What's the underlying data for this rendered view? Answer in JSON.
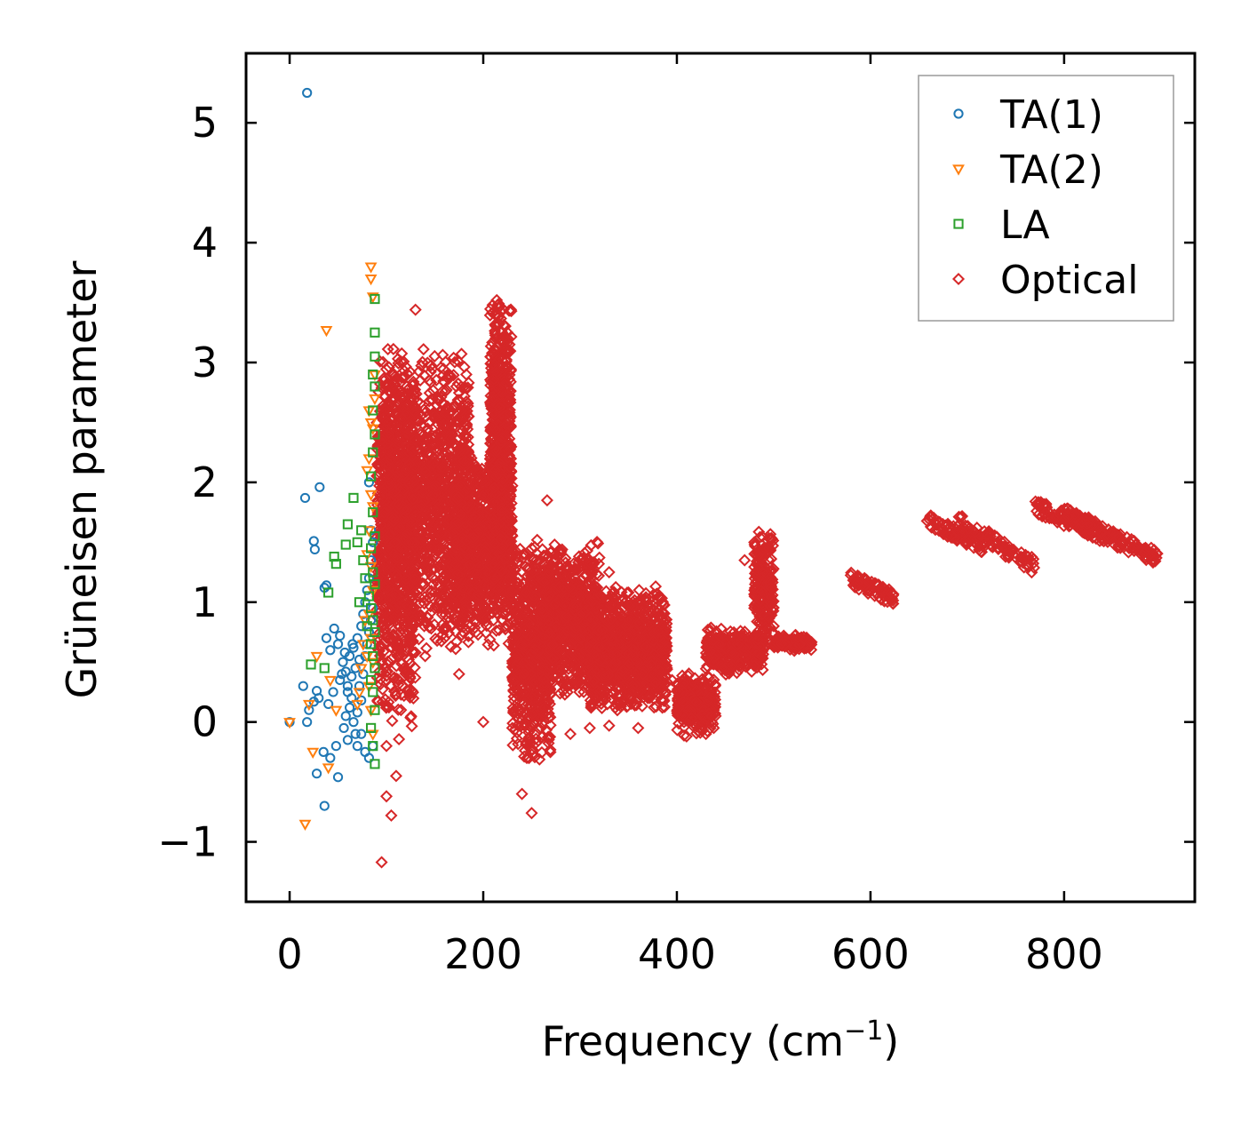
{
  "chart_data": {
    "type": "scatter",
    "title": "",
    "xlabel": "Frequency (cm",
    "xlabel_sup": "−1",
    "xlabel_tail": ")",
    "ylabel": "Grüneisen parameter",
    "xlim": [
      -45,
      935
    ],
    "ylim": [
      -1.5,
      5.58
    ],
    "xticks": [
      0,
      200,
      400,
      600,
      800
    ],
    "yticks": [
      -1,
      0,
      1,
      2,
      3,
      4,
      5
    ],
    "xtick_labels": [
      "0",
      "200",
      "400",
      "600",
      "800"
    ],
    "ytick_labels": [
      "−1",
      "0",
      "1",
      "2",
      "3",
      "4",
      "5"
    ],
    "legend_position": "top-right",
    "series": [
      {
        "name": "TA(1)",
        "marker": "circle",
        "color": "#1f77b4",
        "points": [
          [
            18,
            5.25
          ],
          [
            16,
            1.87
          ],
          [
            31,
            1.96
          ],
          [
            25,
            1.51
          ],
          [
            26,
            1.44
          ],
          [
            38,
            1.14
          ],
          [
            36,
            1.12
          ],
          [
            14,
            0.3
          ],
          [
            20,
            0.1
          ],
          [
            18,
            0.0
          ],
          [
            28,
            0.26
          ],
          [
            30,
            0.2
          ],
          [
            25,
            0.17
          ],
          [
            28,
            -0.43
          ],
          [
            35,
            -0.25
          ],
          [
            36,
            -0.7
          ],
          [
            42,
            -0.3
          ],
          [
            48,
            -0.2
          ],
          [
            50,
            -0.46
          ],
          [
            38,
            0.7
          ],
          [
            42,
            0.6
          ],
          [
            46,
            0.78
          ],
          [
            50,
            0.65
          ],
          [
            52,
            0.72
          ],
          [
            55,
            0.5
          ],
          [
            58,
            0.42
          ],
          [
            60,
            0.3
          ],
          [
            62,
            0.55
          ],
          [
            64,
            0.38
          ],
          [
            66,
            0.62
          ],
          [
            68,
            0.45
          ],
          [
            70,
            0.7
          ],
          [
            72,
            0.52
          ],
          [
            74,
            0.8
          ],
          [
            76,
            0.9
          ],
          [
            78,
            1.0
          ],
          [
            80,
            1.1
          ],
          [
            82,
            1.2
          ],
          [
            84,
            1.35
          ],
          [
            86,
            1.5
          ],
          [
            84,
            1.6
          ],
          [
            82,
            2.0
          ],
          [
            40,
            0.15
          ],
          [
            45,
            0.25
          ],
          [
            52,
            0.35
          ],
          [
            56,
            -0.05
          ],
          [
            58,
            0.05
          ],
          [
            60,
            -0.15
          ],
          [
            62,
            0.12
          ],
          [
            64,
            0.2
          ],
          [
            66,
            0.0
          ],
          [
            68,
            -0.1
          ],
          [
            70,
            0.08
          ],
          [
            72,
            0.3
          ],
          [
            74,
            0.18
          ],
          [
            76,
            0.4
          ],
          [
            78,
            0.55
          ],
          [
            80,
            0.65
          ],
          [
            82,
            0.75
          ],
          [
            84,
            0.85
          ],
          [
            86,
            0.95
          ],
          [
            70,
            -0.2
          ],
          [
            74,
            -0.1
          ],
          [
            78,
            -0.25
          ],
          [
            82,
            -0.3
          ],
          [
            86,
            -0.2
          ],
          [
            60,
            0.25
          ],
          [
            65,
            0.65
          ],
          [
            54,
            0.4
          ],
          [
            57,
            0.58
          ],
          [
            0,
            0.0
          ]
        ]
      },
      {
        "name": "TA(2)",
        "marker": "triangle-down",
        "color": "#ff7f0e",
        "points": [
          [
            0,
            0.0
          ],
          [
            16,
            -0.85
          ],
          [
            20,
            0.15
          ],
          [
            24,
            -0.25
          ],
          [
            28,
            0.55
          ],
          [
            38,
            3.27
          ],
          [
            40,
            -0.38
          ],
          [
            42,
            0.35
          ],
          [
            48,
            0.1
          ],
          [
            84,
            3.8
          ],
          [
            84,
            3.7
          ],
          [
            86,
            3.55
          ],
          [
            82,
            2.6
          ],
          [
            84,
            2.5
          ],
          [
            86,
            2.45
          ],
          [
            82,
            2.2
          ],
          [
            80,
            2.1
          ],
          [
            84,
            1.9
          ],
          [
            86,
            1.8
          ],
          [
            82,
            1.6
          ],
          [
            80,
            1.4
          ],
          [
            84,
            1.3
          ],
          [
            86,
            1.1
          ],
          [
            82,
            0.9
          ],
          [
            84,
            0.7
          ],
          [
            86,
            0.5
          ],
          [
            82,
            0.3
          ],
          [
            84,
            0.1
          ],
          [
            86,
            -0.1
          ],
          [
            88,
            2.9
          ],
          [
            88,
            2.7
          ],
          [
            78,
            0.85
          ],
          [
            80,
            0.55
          ],
          [
            76,
            0.65
          ],
          [
            74,
            0.45
          ],
          [
            72,
            0.25
          ],
          [
            70,
            0.15
          ]
        ]
      },
      {
        "name": "LA",
        "marker": "square",
        "color": "#2ca02c",
        "points": [
          [
            88,
            3.53
          ],
          [
            88,
            3.25
          ],
          [
            88,
            3.05
          ],
          [
            86,
            2.9
          ],
          [
            88,
            2.8
          ],
          [
            86,
            2.6
          ],
          [
            88,
            2.4
          ],
          [
            86,
            2.25
          ],
          [
            84,
            2.05
          ],
          [
            66,
            1.87
          ],
          [
            60,
            1.65
          ],
          [
            58,
            1.48
          ],
          [
            46,
            1.38
          ],
          [
            48,
            1.32
          ],
          [
            40,
            1.08
          ],
          [
            86,
            1.75
          ],
          [
            88,
            1.55
          ],
          [
            84,
            1.45
          ],
          [
            86,
            1.25
          ],
          [
            88,
            1.15
          ],
          [
            82,
            1.05
          ],
          [
            84,
            0.95
          ],
          [
            86,
            0.85
          ],
          [
            88,
            0.75
          ],
          [
            84,
            0.65
          ],
          [
            86,
            0.55
          ],
          [
            88,
            0.45
          ],
          [
            84,
            0.35
          ],
          [
            86,
            0.25
          ],
          [
            88,
            0.1
          ],
          [
            84,
            -0.05
          ],
          [
            86,
            -0.2
          ],
          [
            88,
            -0.35
          ],
          [
            22,
            0.48
          ],
          [
            36,
            0.45
          ],
          [
            70,
            1.5
          ],
          [
            74,
            1.6
          ],
          [
            76,
            1.35
          ],
          [
            78,
            1.2
          ],
          [
            72,
            1.0
          ],
          [
            80,
            0.8
          ]
        ]
      },
      {
        "name": "Optical",
        "marker": "diamond",
        "color": "#d62728",
        "dense_regions": [
          {
            "cx": 140,
            "cy": 1.85,
            "w": 90,
            "h": 2.2,
            "density": 1400
          },
          {
            "cx": 110,
            "cy": 1.5,
            "w": 40,
            "h": 2.8,
            "density": 700
          },
          {
            "cx": 200,
            "cy": 1.45,
            "w": 60,
            "h": 1.4,
            "density": 900
          },
          {
            "cx": 218,
            "cy": 2.3,
            "w": 22,
            "h": 2.3,
            "density": 600
          },
          {
            "cx": 250,
            "cy": 0.6,
            "w": 40,
            "h": 1.6,
            "density": 700
          },
          {
            "cx": 290,
            "cy": 0.85,
            "w": 60,
            "h": 1.1,
            "density": 900
          },
          {
            "cx": 350,
            "cy": 0.6,
            "w": 80,
            "h": 0.9,
            "density": 1100
          },
          {
            "cx": 420,
            "cy": 0.15,
            "w": 40,
            "h": 0.45,
            "density": 300
          },
          {
            "cx": 460,
            "cy": 0.6,
            "w": 60,
            "h": 0.35,
            "density": 300
          },
          {
            "cx": 490,
            "cy": 1.1,
            "w": 20,
            "h": 0.9,
            "density": 200
          },
          {
            "cx": 520,
            "cy": 0.66,
            "w": 40,
            "h": 0.12,
            "density": 120
          }
        ],
        "streaks": [
          {
            "x": [
              580,
              625
            ],
            "y": [
              1.2,
              1.03
            ],
            "n": 70
          },
          {
            "x": [
              660,
              720
            ],
            "y": [
              1.68,
              1.45
            ],
            "n": 90
          },
          {
            "x": [
              690,
              770
            ],
            "y": [
              1.68,
              1.3
            ],
            "n": 90
          },
          {
            "x": [
              770,
              895
            ],
            "y": [
              1.8,
              1.38
            ],
            "n": 170
          },
          {
            "x": [
              800,
              860
            ],
            "y": [
              1.75,
              1.5
            ],
            "n": 80
          }
        ],
        "points": [
          [
            95,
            -1.17
          ],
          [
            105,
            -0.78
          ],
          [
            100,
            -0.62
          ],
          [
            110,
            -0.45
          ],
          [
            115,
            0.1
          ],
          [
            130,
            3.44
          ],
          [
            215,
            3.48
          ],
          [
            266,
            1.85
          ],
          [
            250,
            -0.76
          ],
          [
            240,
            -0.6
          ],
          [
            245,
            -0.3
          ],
          [
            200,
            0.0
          ],
          [
            310,
            1.33
          ],
          [
            330,
            1.25
          ],
          [
            350,
            1.08
          ],
          [
            380,
            1.07
          ],
          [
            480,
            1.5
          ],
          [
            495,
            1.45
          ],
          [
            470,
            1.35
          ],
          [
            160,
            0.7
          ],
          [
            175,
            0.4
          ],
          [
            130,
            0.58
          ],
          [
            140,
            0.55
          ],
          [
            230,
            -0.05
          ],
          [
            290,
            -0.1
          ],
          [
            310,
            -0.05
          ],
          [
            330,
            -0.03
          ],
          [
            360,
            -0.05
          ],
          [
            100,
            -0.2
          ],
          [
            105,
            0.3
          ],
          [
            250,
            1.45
          ],
          [
            280,
            1.4
          ],
          [
            300,
            1.1
          ],
          [
            150,
            2.55
          ],
          [
            185,
            2.55
          ],
          [
            225,
            3.25
          ],
          [
            150,
            0.95
          ],
          [
            120,
            2.1
          ],
          [
            365,
            0.4
          ],
          [
            370,
            0.2
          ],
          [
            385,
            0.12
          ],
          [
            395,
            0.35
          ],
          [
            410,
            -0.12
          ],
          [
            430,
            -0.1
          ],
          [
            440,
            0.05
          ],
          [
            480,
            0.95
          ],
          [
            500,
            0.8
          ]
        ]
      }
    ]
  }
}
